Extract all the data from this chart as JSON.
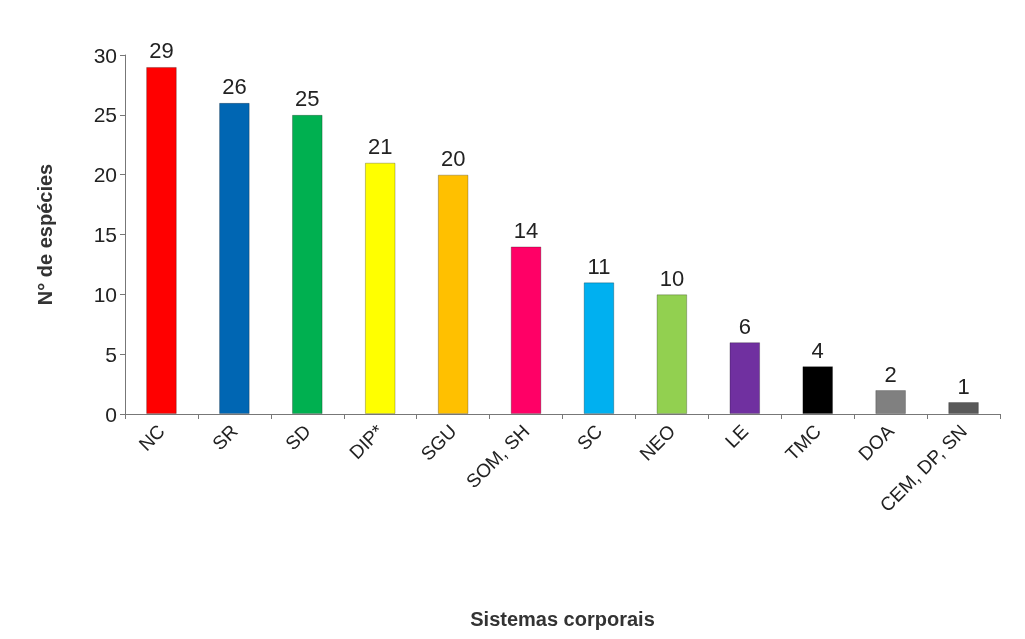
{
  "chart_data": {
    "type": "bar",
    "xlabel": "Sistemas corporais",
    "ylabel": "N° de espécies",
    "categories": [
      "NC",
      "SR",
      "SD",
      "DIP*",
      "SGU",
      "SOM, SH",
      "SC",
      "NEO",
      "LE",
      "TMC",
      "DOA",
      "CEM, DP, SN"
    ],
    "values": [
      29,
      26,
      25,
      21,
      20,
      14,
      11,
      10,
      6,
      4,
      2,
      1
    ],
    "colors": [
      "#ff0000",
      "#0066b3",
      "#00b050",
      "#ffff00",
      "#ffc000",
      "#ff0066",
      "#00b0f0",
      "#92d050",
      "#7030a0",
      "#000000",
      "#808080",
      "#595959"
    ],
    "ylim": [
      0,
      30
    ],
    "yticks": [
      0,
      5,
      10,
      15,
      20,
      25,
      30
    ],
    "data_labels": true,
    "grid": false
  }
}
